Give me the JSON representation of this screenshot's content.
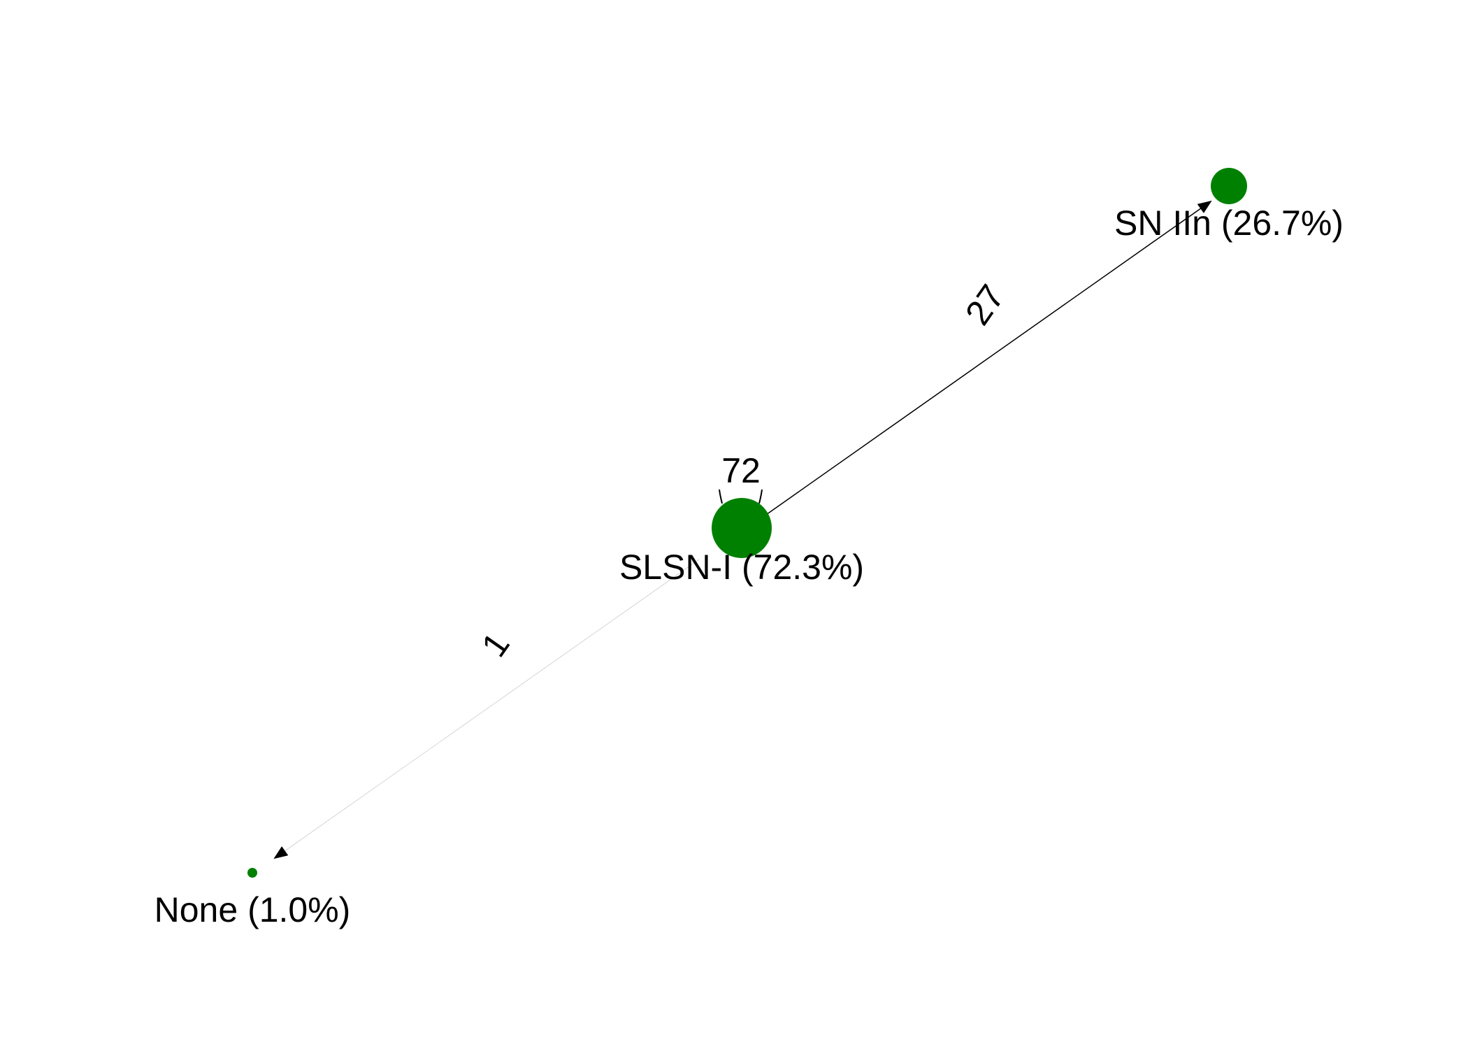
{
  "diagram": {
    "type": "transition-graph",
    "node_color": "#008000",
    "edge_color": "#000000",
    "nodes": [
      {
        "id": "sn_iin",
        "label": "SN IIn (26.7%)",
        "share": 26.7
      },
      {
        "id": "slsn_i",
        "label": "SLSN-I (72.3%)",
        "share": 72.3
      },
      {
        "id": "none",
        "label": "None (1.0%)",
        "share": 1.0
      }
    ],
    "edges": [
      {
        "from": "slsn_i",
        "to": "sn_iin",
        "label": "27"
      },
      {
        "from": "slsn_i",
        "to": "none",
        "label": "1"
      },
      {
        "from": "slsn_i",
        "to": "slsn_i",
        "label": "72",
        "self_loop": true
      }
    ]
  }
}
